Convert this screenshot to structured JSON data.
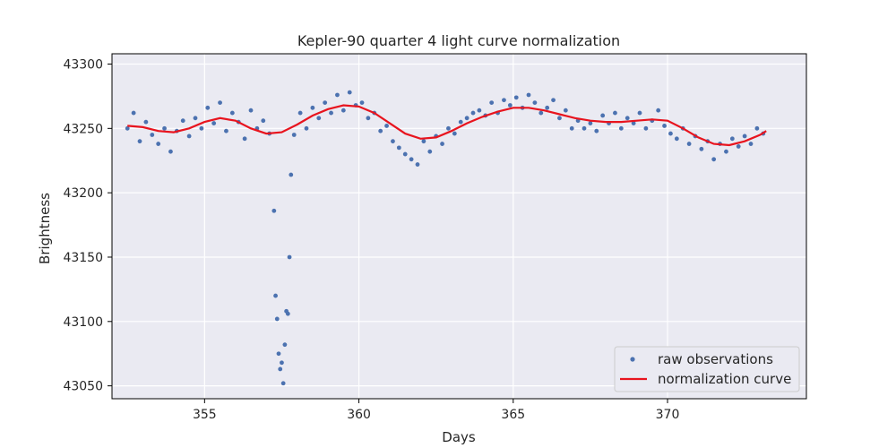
{
  "chart_data": {
    "type": "scatter",
    "title": "Kepler-90 quarter 4 light curve normalization",
    "xlabel": "Days",
    "ylabel": "Brightness",
    "xlim": [
      352.0,
      374.5
    ],
    "ylim": [
      43040,
      43308
    ],
    "xticks": [
      355,
      360,
      365,
      370
    ],
    "yticks": [
      43050,
      43100,
      43150,
      43200,
      43250,
      43300
    ],
    "grid": true,
    "legend_position": "lower-right",
    "colors": {
      "scatter": "#4c72b0",
      "curve": "#e8141e",
      "background": "#eaeaf2",
      "grid": "#ffffff"
    },
    "series": [
      {
        "name": "raw observations",
        "kind": "scatter",
        "x": [
          352.5,
          352.7,
          352.9,
          353.1,
          353.3,
          353.5,
          353.7,
          353.9,
          354.1,
          354.3,
          354.5,
          354.7,
          354.9,
          355.1,
          355.3,
          355.5,
          355.7,
          355.9,
          356.1,
          356.3,
          356.5,
          356.7,
          356.9,
          357.1,
          357.25,
          357.3,
          357.35,
          357.4,
          357.45,
          357.5,
          357.55,
          357.6,
          357.65,
          357.7,
          357.75,
          357.8,
          357.9,
          358.1,
          358.3,
          358.5,
          358.7,
          358.9,
          359.1,
          359.3,
          359.5,
          359.7,
          359.9,
          360.1,
          360.3,
          360.5,
          360.7,
          360.9,
          361.1,
          361.3,
          361.5,
          361.7,
          361.9,
          362.1,
          362.3,
          362.5,
          362.7,
          362.9,
          363.1,
          363.3,
          363.5,
          363.7,
          363.9,
          364.1,
          364.3,
          364.5,
          364.7,
          364.9,
          365.1,
          365.3,
          365.5,
          365.7,
          365.9,
          366.1,
          366.3,
          366.5,
          366.7,
          366.9,
          367.1,
          367.3,
          367.5,
          367.7,
          367.9,
          368.1,
          368.3,
          368.5,
          368.7,
          368.9,
          369.1,
          369.3,
          369.5,
          369.7,
          369.9,
          370.1,
          370.3,
          370.5,
          370.7,
          370.9,
          371.1,
          371.3,
          371.5,
          371.7,
          371.9,
          372.1,
          372.3,
          372.5,
          372.7,
          372.9,
          373.1
        ],
        "y": [
          43250,
          43262,
          43240,
          43255,
          43245,
          43238,
          43250,
          43232,
          43248,
          43256,
          43244,
          43258,
          43250,
          43266,
          43254,
          43270,
          43248,
          43262,
          43255,
          43242,
          43264,
          43250,
          43256,
          43246,
          43186,
          43120,
          43102,
          43075,
          43063,
          43068,
          43052,
          43082,
          43108,
          43106,
          43150,
          43214,
          43245,
          43262,
          43250,
          43266,
          43258,
          43270,
          43262,
          43276,
          43264,
          43278,
          43268,
          43270,
          43258,
          43262,
          43248,
          43252,
          43240,
          43235,
          43230,
          43226,
          43222,
          43240,
          43232,
          43244,
          43238,
          43250,
          43246,
          43255,
          43258,
          43262,
          43264,
          43260,
          43270,
          43262,
          43272,
          43268,
          43274,
          43266,
          43276,
          43270,
          43262,
          43266,
          43272,
          43258,
          43264,
          43250,
          43256,
          43250,
          43254,
          43248,
          43260,
          43254,
          43262,
          43250,
          43258,
          43254,
          43262,
          43250,
          43256,
          43264,
          43252,
          43246,
          43242,
          43250,
          43238,
          43244,
          43234,
          43240,
          43226,
          43238,
          43232,
          43242,
          43236,
          43244,
          43238,
          43250,
          43246
        ]
      },
      {
        "name": "normalization curve",
        "kind": "line",
        "x": [
          352.5,
          353.0,
          353.5,
          354.0,
          354.5,
          355.0,
          355.5,
          356.0,
          356.5,
          357.0,
          357.5,
          358.0,
          358.5,
          359.0,
          359.5,
          360.0,
          360.5,
          361.0,
          361.5,
          362.0,
          362.5,
          363.0,
          363.5,
          364.0,
          364.5,
          365.0,
          365.5,
          366.0,
          366.5,
          367.0,
          367.5,
          368.0,
          368.5,
          369.0,
          369.5,
          370.0,
          370.5,
          371.0,
          371.5,
          372.0,
          372.5,
          373.0,
          373.2
        ],
        "y": [
          43252,
          43251,
          43248,
          43247,
          43250,
          43255,
          43258,
          43256,
          43250,
          43246,
          43247,
          43253,
          43260,
          43265,
          43268,
          43267,
          43262,
          43254,
          43246,
          43242,
          43243,
          43248,
          43254,
          43259,
          43263,
          43266,
          43266,
          43264,
          43261,
          43258,
          43256,
          43255,
          43255,
          43256,
          43257,
          43256,
          43250,
          43243,
          43238,
          43237,
          43240,
          43245,
          43248
        ]
      }
    ]
  }
}
